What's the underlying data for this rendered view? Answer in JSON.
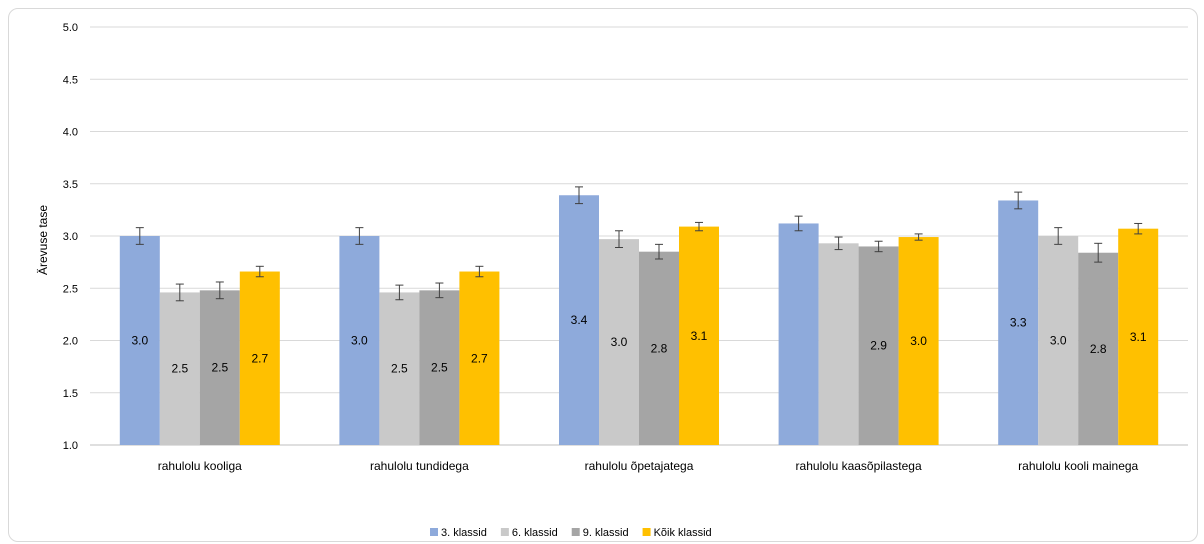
{
  "chart_data": {
    "type": "bar",
    "title": "",
    "xlabel": "",
    "ylabel": "Ärevuse tase",
    "ylim": [
      1.0,
      5.0
    ],
    "yticks": [
      "1.0",
      "1.5",
      "2.0",
      "2.5",
      "3.0",
      "3.5",
      "4.0",
      "4.5",
      "5.0"
    ],
    "grid": true,
    "legend_position": "bottom",
    "error_bars": true,
    "categories": [
      "rahulolu kooliga",
      "rahulolu tundidega",
      "rahulolu õpetajatega",
      "rahulolu kaasõpilastega",
      "rahulolu kooli mainega"
    ],
    "series": [
      {
        "name": "3. klassid",
        "color": "#8eaadb",
        "values": [
          3.0,
          3.0,
          3.39,
          3.12,
          3.34
        ],
        "errors": [
          0.08,
          0.08,
          0.08,
          0.07,
          0.08
        ],
        "labels": [
          "3.0",
          "3.0",
          "3.4",
          "",
          "3.3"
        ]
      },
      {
        "name": "6. klassid",
        "color": "#c9c9c9",
        "values": [
          2.46,
          2.46,
          2.97,
          2.93,
          3.0
        ],
        "errors": [
          0.08,
          0.07,
          0.08,
          0.06,
          0.08
        ],
        "labels": [
          "2.5",
          "2.5",
          "3.0",
          "",
          "3.0"
        ]
      },
      {
        "name": "9. klassid",
        "color": "#a5a5a5",
        "values": [
          2.48,
          2.48,
          2.85,
          2.9,
          2.84
        ],
        "errors": [
          0.08,
          0.07,
          0.07,
          0.05,
          0.09
        ],
        "labels": [
          "2.5",
          "2.5",
          "2.8",
          "2.9",
          "2.8"
        ]
      },
      {
        "name": "Kõik klassid",
        "color": "#ffc000",
        "values": [
          2.66,
          2.66,
          3.09,
          2.99,
          3.07
        ],
        "errors": [
          0.05,
          0.05,
          0.04,
          0.03,
          0.05
        ],
        "labels": [
          "2.7",
          "2.7",
          "3.1",
          "3.0",
          "3.1"
        ]
      }
    ]
  }
}
